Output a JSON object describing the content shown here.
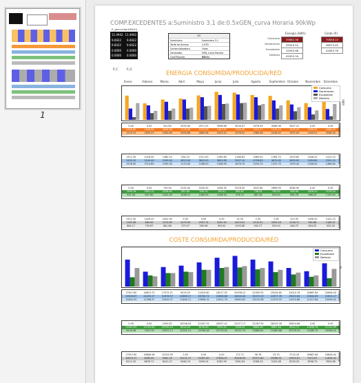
{
  "thumbnail": {
    "page_number": "1"
  },
  "header": {
    "title": "COMP.EXCEDENTES a:Suministro 3.1  de:0.5xGEN_curva Horaria 90kWp"
  },
  "summary_card": {
    "header": "P_generada(kWh/h)",
    "rows": [
      {
        "label": "11.4942",
        "value": "11.4942"
      },
      {
        "label": "9.6922",
        "value": "9.6922"
      },
      {
        "label": "9.6022",
        "value": "9.6022"
      },
      {
        "label": "0.0000",
        "value": "0.0000"
      },
      {
        "label": "0.0000",
        "value": "0.0000"
      }
    ],
    "axis": [
      "P_C",
      "P_G"
    ]
  },
  "info_table": {
    "header": "OC",
    "rows": [
      {
        "k": "Suministro",
        "v": "Suministro 3.1"
      },
      {
        "k": "Tarifa de Acceso",
        "v": "2.0TD"
      },
      {
        "k": "Comercializadora",
        "v": "Otras"
      },
      {
        "k": "Generador",
        "v": "GEN_curva Horaria 90kWp"
      },
      {
        "k": "Coef.Reparto",
        "v": "0.5"
      }
    ]
  },
  "energy_box": {
    "title": "Energía (kWh)",
    "rows": [
      {
        "label": "Consumo",
        "value": "35862.36",
        "color": "#8b1a1a"
      },
      {
        "label": "Generación",
        "value": "55929.54",
        "color": "#ffffff"
      },
      {
        "label": "Excedente",
        "value": "41992.98",
        "color": "#ffffff"
      },
      {
        "label": "Defecto",
        "value": "42925.34",
        "color": "#ffffff"
      }
    ]
  },
  "cost_box": {
    "title": "Coste (€)",
    "rows": [
      {
        "value": "70858.13",
        "color": "#8b1a1a"
      },
      {
        "value": "46573.40",
        "color": "#ffffff"
      },
      {
        "value": "41653.76",
        "color": "#ffffff"
      }
    ]
  },
  "energy_section": {
    "title": "ENERGIA CONSUMIDA/PRODUCIDA/RED"
  },
  "cost_section": {
    "title": "COSTE CONSUMIDA/PRODUCIDA/RED"
  },
  "months": [
    "Enero",
    "Febrero",
    "Marzo",
    "Abril",
    "Mayo",
    "Junio",
    "Julio",
    "Agosto",
    "Septiembre",
    "Octubre",
    "Noviembre",
    "Diciembre"
  ],
  "energy_legend": [
    {
      "name": "Consumo",
      "color": "#f5a623"
    },
    {
      "name": "Generacion",
      "color": "#1a1adc"
    },
    {
      "name": "Excedente",
      "color": "#555555"
    },
    {
      "name": "Defecto",
      "color": "#aaaaaa"
    }
  ],
  "cost_legend": [
    {
      "name": "Consumo",
      "color": "#1a1adc"
    },
    {
      "name": "Excedente",
      "color": "#1f7a1f"
    },
    {
      "name": "Defecto",
      "color": "#999999"
    }
  ],
  "chart_data": [
    {
      "type": "bar",
      "title": "ENERGIA CONSUMIDA/PRODUCIDA/RED",
      "categories": [
        "Enero",
        "Febrero",
        "Marzo",
        "Abril",
        "Mayo",
        "Junio",
        "Julio",
        "Agosto",
        "Septiembre",
        "Octubre",
        "Noviembre",
        "Diciembre"
      ],
      "ylabel": "kWh",
      "ylim": [
        0,
        7000
      ],
      "legend": "top-right",
      "series": [
        {
          "name": "Consumo",
          "values": [
            5350,
            3650,
            4500,
            4700,
            5400,
            6200,
            6000,
            5500,
            5300,
            4300,
            3700,
            5300
          ]
        },
        {
          "name": "Generacion",
          "values": [
            2500,
            3200,
            4000,
            4500,
            5000,
            5500,
            5600,
            5000,
            4300,
            3400,
            2800,
            2400
          ]
        },
        {
          "name": "Excedente",
          "values": [
            600,
            1500,
            2000,
            2500,
            3000,
            3500,
            3700,
            3200,
            2500,
            1900,
            1200,
            800
          ]
        },
        {
          "name": "Defecto",
          "values": [
            3700,
            2000,
            2500,
            2700,
            3100,
            3600,
            3800,
            3500,
            3200,
            2800,
            2100,
            3500
          ]
        }
      ]
    },
    {
      "type": "bar",
      "title": "COSTE CONSUMIDA/PRODUCIDA/RED",
      "categories": [
        "Enero",
        "Febrero",
        "Marzo",
        "Abril",
        "Mayo",
        "Junio",
        "Julio",
        "Agosto",
        "Septiembre",
        "Octubre",
        "Noviembre",
        "Diciembre"
      ],
      "ylabel": "€",
      "ylim": [
        0,
        80000
      ],
      "legend": "top-right",
      "series": [
        {
          "name": "Consumo",
          "values": [
            58000,
            32000,
            42000,
            45000,
            52000,
            62000,
            66000,
            58000,
            54000,
            40000,
            33000,
            50000
          ]
        },
        {
          "name": "Excedente",
          "values": [
            20000,
            24000,
            29000,
            32000,
            36000,
            40000,
            41000,
            37000,
            31000,
            26000,
            21000,
            18000
          ]
        },
        {
          "name": "Defecto",
          "values": [
            40000,
            22000,
            29000,
            31000,
            36000,
            42000,
            44000,
            40000,
            36000,
            30000,
            24000,
            38000
          ]
        }
      ]
    }
  ],
  "energy_tables": [
    {
      "side": "GENERACION",
      "rows": [
        [
          "0.00",
          "4.05",
          "331.80",
          "2055.06",
          "2971.25",
          "3996.86",
          "4026.47",
          "4076.49",
          "4066.06",
          "2637.31",
          "0.00",
          "0.00"
        ],
        [
          "2459.80",
          "1556.06",
          "3046.96",
          "1178.98",
          "1210.99",
          "1447.67",
          "1569.06",
          "1315.17",
          "1272.14",
          "1490.10",
          "2359.52",
          "2446.20"
        ],
        [
          "1219.13",
          "1635.23",
          "1940.60",
          "2005.68",
          "2862.46",
          "2923.22",
          "2578.52",
          "2380.08",
          "2016.42",
          "1937.43",
          "1430.51",
          "2048.35"
        ]
      ]
    },
    {
      "side": "DEFECTO",
      "rows": [
        [
          "1312.30",
          "1426.40",
          "1480.10",
          "834.23",
          "1011.00",
          "1265.80",
          "2186.63",
          "2089.00",
          "1364.70",
          "1053.60",
          "1406.20",
          "1412.10"
        ],
        [
          "2420.10",
          "2140.40",
          "2190.40",
          "2613.30",
          "3625.50",
          "3822.89",
          "3547.10",
          "4756.90",
          "3673.00",
          "2653.90",
          "2494.80",
          "2291.10"
        ],
        [
          "1528.90",
          "1314.80",
          "1390.30",
          "1119.00",
          "1268.00",
          "1346.90",
          "1876.70",
          "2254.70",
          "1237.70",
          "1359.40",
          "1306.00",
          "1466.60"
        ]
      ]
    },
    {
      "side": "CONSUMO",
      "rows": [
        [
          "0.00",
          "0.00",
          "735.94",
          "2252.00",
          "3330.45",
          "3256.35",
          "3518.05",
          "3047.64",
          "2669.09",
          "3080.90",
          "0.00",
          "0.00"
        ],
        [
          "1399.76",
          "1801.12",
          "2038.65",
          "857.84",
          "949.70",
          "790.42",
          "862.67",
          "706.54",
          "740.92",
          "956.99",
          "1626.20",
          "3176.14"
        ],
        [
          "952.28",
          "857.80",
          "1202.09",
          "1096.37",
          "1385.55",
          "1436.94",
          "976.72",
          "887.26",
          "529.43",
          "694.78",
          "966.29",
          "1125.50"
        ]
      ]
    },
    {
      "side": "EXCEDENTE",
      "rows": [
        [
          "1312.30",
          "1426.20",
          "2341.90",
          "0.00",
          "0.00",
          "0.00",
          "14.35",
          "2.50",
          "2.08",
          "313.35",
          "1406.20",
          "1422.10"
        ],
        [
          "1163.96",
          "669.00",
          "1013.89",
          "2070.99",
          "2997.74",
          "3502.92",
          "4423.91",
          "4132.01",
          "3393.16",
          "2128.71",
          "961.68",
          "1180.47"
        ],
        [
          "860.17",
          "729.67",
          "681.88",
          "579.57",
          "585.98",
          "904.61",
          "1093.86",
          "902.27",
          "529.43",
          "446.75",
          "804.05",
          "935.28"
        ]
      ]
    }
  ],
  "cost_tables": [
    {
      "side": "CONSUMO",
      "rows": [
        [
          "17557.60",
          "16813.75",
          "17575.21",
          "9029.29",
          "11619.60",
          "18217.92",
          "20936.12",
          "22955.50",
          "19204.80",
          "12010.76",
          "16687.84",
          "20606.44"
        ],
        [
          "22626.87",
          "20259.27",
          "21678.97",
          "20669.17",
          "28780.73",
          "20606.86",
          "34618.40",
          "30372.03",
          "21877.39",
          "19022.64",
          "20644.69",
          "21615.17"
        ],
        [
          "13482.93",
          "11398.57",
          "12059.27",
          "11460.11",
          "13656.15",
          "12611.79",
          "19653.62",
          "20132.98",
          "11479.25",
          "11510.68",
          "11517.84",
          "15099.02"
        ]
      ]
    },
    {
      "side": "EXCEDENTE",
      "rows": [
        [
          "0.00",
          "0.00",
          "2290.87",
          "16748.05",
          "22267.33",
          "26307.41",
          "22377.17",
          "22287.95",
          "26225.28",
          "19810.68",
          "0.00",
          "0.00"
        ],
        [
          "11307.53",
          "13723.89",
          "23750.10",
          "8014.25",
          "6120.40",
          "7874.23",
          "7948.23",
          "6664.18",
          "8987.44",
          "9022.71",
          "15040.76",
          "11121.99"
        ],
        [
          "9216.36",
          "7922.79",
          "13297.17",
          "12331.11",
          "19760.28",
          "15773.02",
          "14707.74",
          "13864.81",
          "12480.66",
          "15729.15",
          "13280.75",
          "10556.10"
        ]
      ]
    },
    {
      "side": "DEFECTO",
      "rows": [
        [
          "17557.60",
          "16806.96",
          "15333.09",
          "0.00",
          "0.00",
          "0.00",
          "172.71",
          "96.78",
          "23.79",
          "3720.34",
          "16687.84",
          "20606.44"
        ],
        [
          "10670.21",
          "8365.40",
          "9582.10",
          "19131.17",
          "25497.40",
          "27826.47",
          "35408.39",
          "30971.60",
          "29588.51",
          "14903.81",
          "9372.67",
          "11828.32"
        ],
        [
          "8112.29",
          "6876.71",
          "8411.27",
          "5464.74",
          "5549.24",
          "6762.95",
          "7061.63",
          "6786.23",
          "5102.08",
          "6239.20",
          "8296.75",
          "7820.66"
        ]
      ]
    }
  ]
}
